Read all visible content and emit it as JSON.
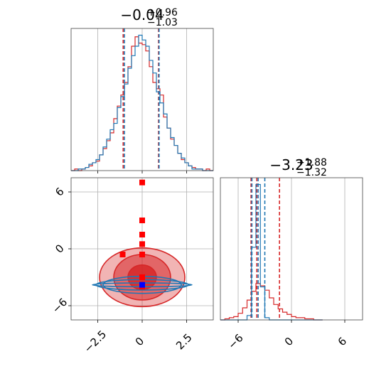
{
  "colors": {
    "red": "#d62728",
    "blue": "#1f77b4",
    "red_marker": "#ff0000",
    "blue_marker": "#0000ff"
  },
  "titles": {
    "p1": {
      "median": "−0.04",
      "plus": "+0.96",
      "minus": "−1.03"
    },
    "p2": {
      "median": "−3.23",
      "plus": "+1.88",
      "minus": "−1.32"
    }
  },
  "chart_data": [
    {
      "type": "histogram",
      "panel": "top-left",
      "parameter_index": 0,
      "xlim": [
        -4,
        4
      ],
      "xticks": [
        -2.5,
        0.0,
        2.5
      ],
      "bins": [
        -3.9,
        -3.7,
        -3.5,
        -3.3,
        -3.1,
        -2.9,
        -2.7,
        -2.5,
        -2.3,
        -2.1,
        -1.9,
        -1.7,
        -1.5,
        -1.3,
        -1.1,
        -0.9,
        -0.7,
        -0.5,
        -0.3,
        -0.1,
        0.1,
        0.3,
        0.5,
        0.7,
        0.9,
        1.1,
        1.3,
        1.5,
        1.7,
        1.9,
        2.1,
        2.3,
        2.5,
        2.7,
        2.9,
        3.1,
        3.3,
        3.5,
        3.7,
        3.9
      ],
      "series": [
        {
          "name": "",
          "color": "#d62728",
          "counts": [
            0,
            1,
            0,
            1,
            2,
            3,
            5,
            6,
            10,
            14,
            19,
            24,
            33,
            41,
            48,
            56,
            66,
            79,
            85,
            81,
            80,
            76,
            66,
            56,
            52,
            48,
            34,
            27,
            20,
            16,
            11,
            7,
            5,
            3,
            2,
            1,
            1,
            0,
            1,
            0
          ],
          "quantiles": [
            -1.07,
            0.92
          ]
        },
        {
          "name": "",
          "color": "#1f77b4",
          "counts": [
            0,
            0,
            1,
            1,
            2,
            4,
            5,
            7,
            10,
            15,
            20,
            26,
            30,
            40,
            47,
            55,
            65,
            73,
            79,
            86,
            83,
            79,
            70,
            62,
            50,
            43,
            36,
            27,
            21,
            16,
            11,
            8,
            5,
            3,
            1,
            1,
            1,
            0,
            0,
            0
          ],
          "quantiles": [
            -1.0,
            0.95
          ]
        }
      ]
    },
    {
      "type": "histogram",
      "panel": "bottom-right",
      "parameter_index": 1,
      "xlim": [
        -8,
        8
      ],
      "xticks": [
        -6,
        0,
        6
      ],
      "bins": [
        -7.75,
        -7.25,
        -6.75,
        -6.25,
        -5.75,
        -5.25,
        -4.75,
        -4.25,
        -3.75,
        -3.25,
        -2.75,
        -2.25,
        -1.75,
        -1.25,
        -0.75,
        -0.25,
        0.25,
        0.75,
        1.25,
        1.75,
        2.25,
        2.75,
        3.25
      ],
      "series": [
        {
          "name": "",
          "color": "#d62728",
          "counts": [
            0,
            1,
            2,
            3,
            6,
            11,
            18,
            26,
            33,
            31,
            27,
            20,
            14,
            10,
            7,
            5,
            3,
            2,
            2,
            1,
            1,
            0,
            0
          ],
          "quantiles": [
            -4.55,
            -3.9,
            -1.35
          ]
        },
        {
          "name": "",
          "color": "#1f77b4",
          "counts": [
            0,
            0,
            0,
            0,
            0,
            0,
            4,
            66,
            123,
            30,
            2,
            0,
            0,
            0,
            0,
            0,
            0,
            0,
            0,
            0,
            0,
            0,
            0
          ],
          "quantiles": [
            -4.45,
            -3.75,
            -3.0
          ]
        }
      ]
    },
    {
      "type": "contour",
      "panel": "bottom-left",
      "xlim": [
        -4,
        4
      ],
      "ylim": [
        -7.5,
        7.5
      ],
      "xticks": [
        -2.5,
        0.0,
        2.5
      ],
      "yticks": [
        -6,
        0,
        6
      ],
      "series": [
        {
          "name": "",
          "color": "#d62728",
          "center": [
            0.0,
            -3.0
          ],
          "level_radii": [
            [
              0.8,
              1.3
            ],
            [
              1.6,
              2.4
            ],
            [
              2.4,
              3.1
            ]
          ]
        },
        {
          "name": "",
          "color": "#1f77b4",
          "center": [
            0.0,
            -3.8
          ],
          "level_radii": [
            [
              2.8,
              0.2
            ],
            [
              2.6,
              0.55
            ],
            [
              2.2,
              0.9
            ]
          ]
        }
      ],
      "markers": [
        {
          "color": "#ff0000",
          "points": [
            [
              0.0,
              7.0
            ],
            [
              0.0,
              3.0
            ],
            [
              0.0,
              1.5
            ],
            [
              0.0,
              0.5
            ],
            [
              -1.1,
              -0.6
            ],
            [
              0.0,
              -0.6
            ],
            [
              0.0,
              -3.0
            ],
            [
              0.0,
              -3.9
            ],
            [
              0.0,
              -4.0
            ]
          ]
        },
        {
          "color": "#0000ff",
          "points": [
            [
              0.0,
              -3.8
            ]
          ]
        }
      ]
    }
  ]
}
